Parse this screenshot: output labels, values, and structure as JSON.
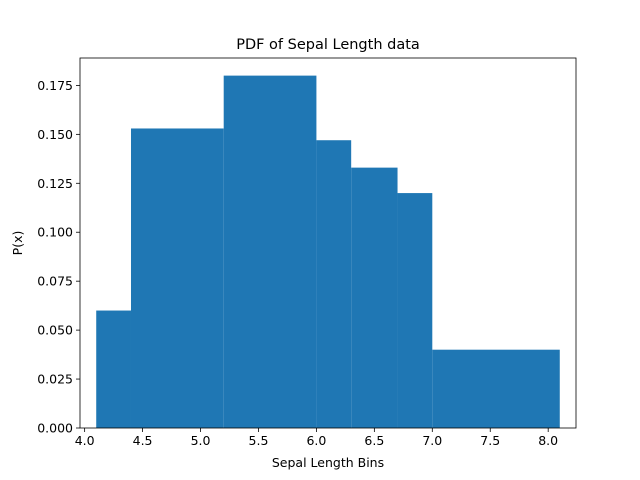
{
  "chart_data": {
    "type": "bar",
    "title": "PDF of Sepal Length data",
    "xlabel": "Sepal Length Bins",
    "ylabel": "P(x)",
    "xlim": [
      3.96,
      8.24
    ],
    "ylim": [
      0.0,
      0.189
    ],
    "xticks": [
      4.0,
      4.5,
      5.0,
      5.5,
      6.0,
      6.5,
      7.0,
      7.5,
      8.0
    ],
    "xtick_labels": [
      "4.0",
      "4.5",
      "5.0",
      "5.5",
      "6.0",
      "6.5",
      "7.0",
      "7.5",
      "8.0"
    ],
    "yticks": [
      0.0,
      0.025,
      0.05,
      0.075,
      0.1,
      0.125,
      0.15,
      0.175
    ],
    "ytick_labels": [
      "0.000",
      "0.025",
      "0.050",
      "0.075",
      "0.100",
      "0.125",
      "0.150",
      "0.175"
    ],
    "bins": [
      {
        "x0": 4.1,
        "x1": 4.4,
        "value": 0.06
      },
      {
        "x0": 4.4,
        "x1": 5.2,
        "value": 0.153
      },
      {
        "x0": 5.2,
        "x1": 6.0,
        "value": 0.18
      },
      {
        "x0": 6.0,
        "x1": 6.3,
        "value": 0.147
      },
      {
        "x0": 6.3,
        "x1": 6.7,
        "value": 0.133
      },
      {
        "x0": 6.7,
        "x1": 7.0,
        "value": 0.12
      },
      {
        "x0": 7.0,
        "x1": 8.1,
        "value": 0.04
      }
    ],
    "bar_color": "#1f77b4",
    "grid": false,
    "legend": "none"
  }
}
